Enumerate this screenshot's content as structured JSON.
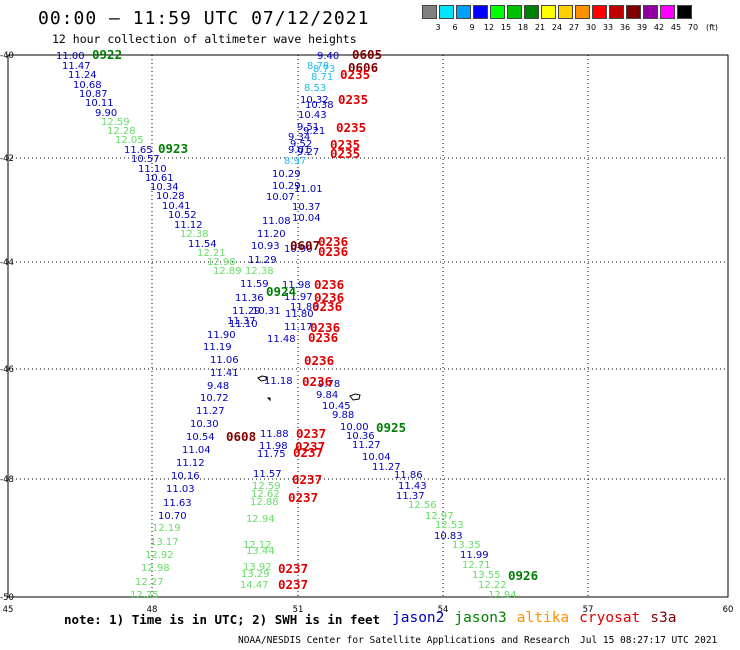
{
  "header": {
    "title": "00:00 – 11:59 UTC 07/12/2021",
    "subtitle": "12 hour collection of altimeter wave heights"
  },
  "legend": {
    "unit": "(ft)",
    "bins": [
      {
        "label": "3",
        "color": "#808080"
      },
      {
        "label": "6",
        "color": "#00e5ff"
      },
      {
        "label": "9",
        "color": "#00a0ff"
      },
      {
        "label": "12",
        "color": "#0000ff"
      },
      {
        "label": "15",
        "color": "#00ff00"
      },
      {
        "label": "18",
        "color": "#00c000"
      },
      {
        "label": "21",
        "color": "#008000"
      },
      {
        "label": "24",
        "color": "#ffff00"
      },
      {
        "label": "27",
        "color": "#ffd000"
      },
      {
        "label": "30",
        "color": "#ff9000"
      },
      {
        "label": "33",
        "color": "#ff0000"
      },
      {
        "label": "36",
        "color": "#c00000"
      },
      {
        "label": "39",
        "color": "#800000"
      },
      {
        "label": "42",
        "color": "#9000a0"
      },
      {
        "label": "45",
        "color": "#ff00ff"
      },
      {
        "label": "70",
        "color": "#000000"
      }
    ]
  },
  "axes": {
    "lat_labels": [
      "-40",
      "-42",
      "-44",
      "-46",
      "-48",
      "-50"
    ],
    "lon_labels": [
      "45",
      "48",
      "51",
      "54",
      "57",
      "60"
    ]
  },
  "satellite_colors": {
    "jason2": "#0000c0",
    "jason3": "#008000",
    "altika": "#ff9000",
    "cryosat": "#e00000",
    "s3a": "#800000",
    "light_green": "#66dd66",
    "cyan": "#22bbee"
  },
  "observations": [
    [
      "11.00",
      "#0000c0"
    ],
    [
      "11.47",
      "#0000c0"
    ],
    [
      "11.24",
      "#0000c0"
    ],
    [
      "10.68",
      "#0000c0"
    ],
    [
      "10.87",
      "#0000c0"
    ],
    [
      "10.11",
      "#0000c0"
    ],
    [
      "9.90",
      "#0000c0"
    ],
    [
      "12.59",
      "#66dd66"
    ],
    [
      "12.28",
      "#66dd66"
    ],
    [
      "12.05",
      "#66dd66"
    ],
    [
      "11.65",
      "#0000c0"
    ],
    [
      "10.57",
      "#0000c0"
    ],
    [
      "11.10",
      "#0000c0"
    ],
    [
      "10.61",
      "#0000c0"
    ],
    [
      "10.34",
      "#0000c0"
    ],
    [
      "10.28",
      "#0000c0"
    ],
    [
      "10.41",
      "#0000c0"
    ],
    [
      "10.52",
      "#0000c0"
    ],
    [
      "11.12",
      "#0000c0"
    ],
    [
      "12.38",
      "#66dd66"
    ],
    [
      "11.54",
      "#0000c0"
    ],
    [
      "12.21",
      "#66dd66"
    ],
    [
      "12.98",
      "#66dd66"
    ],
    [
      "12.89",
      "#66dd66"
    ],
    [
      "12.38",
      "#66dd66"
    ],
    [
      "11.59",
      "#0000c0"
    ],
    [
      "11.36",
      "#0000c0"
    ],
    [
      "11.29",
      "#0000c0"
    ],
    [
      "11.10",
      "#0000c0"
    ],
    [
      "10.31",
      "#0000c0"
    ],
    [
      "11.37",
      "#0000c0"
    ],
    [
      "11.90",
      "#0000c0"
    ],
    [
      "11.19",
      "#0000c0"
    ],
    [
      "11.06",
      "#0000c0"
    ],
    [
      "11.41",
      "#0000c0"
    ],
    [
      "9.48",
      "#0000c0"
    ],
    [
      "10.72",
      "#0000c0"
    ],
    [
      "11.27",
      "#0000c0"
    ],
    [
      "10.30",
      "#0000c0"
    ],
    [
      "10.54",
      "#0000c0"
    ],
    [
      "11.04",
      "#0000c0"
    ],
    [
      "11.12",
      "#0000c0"
    ],
    [
      "10.16",
      "#0000c0"
    ],
    [
      "11.03",
      "#0000c0"
    ],
    [
      "11.63",
      "#0000c0"
    ],
    [
      "10.70",
      "#0000c0"
    ],
    [
      "12.19",
      "#66dd66"
    ],
    [
      "13.17",
      "#66dd66"
    ],
    [
      "12.92",
      "#66dd66"
    ],
    [
      "12.98",
      "#66dd66"
    ],
    [
      "12.27",
      "#66dd66"
    ],
    [
      "12.25",
      "#66dd66"
    ],
    [
      "9.40",
      "#0000c0"
    ],
    [
      "8.78",
      "#22bbee"
    ],
    [
      "8.73",
      "#22bbee"
    ],
    [
      "8.71",
      "#22bbee"
    ],
    [
      "8.53",
      "#22bbee"
    ],
    [
      "10.32",
      "#0000c0"
    ],
    [
      "10.38",
      "#0000c0"
    ],
    [
      "10.43",
      "#0000c0"
    ],
    [
      "9.51",
      "#0000c0"
    ],
    [
      "9.21",
      "#0000c0"
    ],
    [
      "9.34",
      "#0000c0"
    ],
    [
      "9.52",
      "#0000c0"
    ],
    [
      "9.01",
      "#0000c0"
    ],
    [
      "9.27",
      "#0000c0"
    ],
    [
      "8.97",
      "#22bbee"
    ],
    [
      "10.29",
      "#0000c0"
    ],
    [
      "10.29",
      "#0000c0"
    ],
    [
      "11.01",
      "#0000c0"
    ],
    [
      "10.07",
      "#0000c0"
    ],
    [
      "10.37",
      "#0000c0"
    ],
    [
      "10.04",
      "#0000c0"
    ],
    [
      "11.08",
      "#0000c0"
    ],
    [
      "11.20",
      "#0000c0"
    ],
    [
      "10.93",
      "#0000c0"
    ],
    [
      "10.90",
      "#0000c0"
    ],
    [
      "11.29",
      "#0000c0"
    ],
    [
      "11.98",
      "#0000c0"
    ],
    [
      "11.97",
      "#0000c0"
    ],
    [
      "11.88",
      "#0000c0"
    ],
    [
      "11.80",
      "#0000c0"
    ],
    [
      "11.17",
      "#0000c0"
    ],
    [
      "11.48",
      "#0000c0"
    ],
    [
      "11.18",
      "#0000c0"
    ],
    [
      "11.88",
      "#0000c0"
    ],
    [
      "11.98",
      "#0000c0"
    ],
    [
      "11.75",
      "#0000c0"
    ],
    [
      "11.57",
      "#0000c0"
    ],
    [
      "12.59",
      "#66dd66"
    ],
    [
      "12.62",
      "#66dd66"
    ],
    [
      "12.88",
      "#66dd66"
    ],
    [
      "12.94",
      "#66dd66"
    ],
    [
      "12.12",
      "#66dd66"
    ],
    [
      "13.44",
      "#66dd66"
    ],
    [
      "13.92",
      "#66dd66"
    ],
    [
      "13.29",
      "#66dd66"
    ],
    [
      "14.47",
      "#66dd66"
    ],
    [
      "9.78",
      "#0000c0"
    ],
    [
      "9.84",
      "#0000c0"
    ],
    [
      "10.45",
      "#0000c0"
    ],
    [
      "9.88",
      "#0000c0"
    ],
    [
      "10.00",
      "#0000c0"
    ],
    [
      "10.36",
      "#0000c0"
    ],
    [
      "11.27",
      "#0000c0"
    ],
    [
      "10.04",
      "#0000c0"
    ],
    [
      "11.27",
      "#0000c0"
    ],
    [
      "11.86",
      "#0000c0"
    ],
    [
      "11.43",
      "#0000c0"
    ],
    [
      "11.37",
      "#0000c0"
    ],
    [
      "12.56",
      "#66dd66"
    ],
    [
      "12.97",
      "#66dd66"
    ],
    [
      "12.53",
      "#66dd66"
    ],
    [
      "10.83",
      "#0000c0"
    ],
    [
      "13.35",
      "#66dd66"
    ],
    [
      "11.99",
      "#0000c0"
    ],
    [
      "12.71",
      "#66dd66"
    ],
    [
      "13.55",
      "#66dd66"
    ],
    [
      "12.22",
      "#66dd66"
    ],
    [
      "12.94",
      "#66dd66"
    ]
  ],
  "time_marks": [
    [
      "0922",
      "#008000"
    ],
    [
      "0923",
      "#008000"
    ],
    [
      "0605",
      "#800000"
    ],
    [
      "0606",
      "#800000"
    ],
    [
      "0235",
      "#e00000"
    ],
    [
      "0235",
      "#e00000"
    ],
    [
      "0235",
      "#e00000"
    ],
    [
      "0235",
      "#e00000"
    ],
    [
      "0235",
      "#e00000"
    ],
    [
      "0607",
      "#800000"
    ],
    [
      "0236",
      "#e00000"
    ],
    [
      "0236",
      "#e00000"
    ],
    [
      "0924",
      "#008000"
    ],
    [
      "0236",
      "#e00000"
    ],
    [
      "0236",
      "#e00000"
    ],
    [
      "0236",
      "#e00000"
    ],
    [
      "0236",
      "#e00000"
    ],
    [
      "0236",
      "#e00000"
    ],
    [
      "0236",
      "#e00000"
    ],
    [
      "0236",
      "#e00000"
    ],
    [
      "0608",
      "#800000"
    ],
    [
      "0237",
      "#e00000"
    ],
    [
      "0237",
      "#e00000"
    ],
    [
      "0237",
      "#e00000"
    ],
    [
      "0237",
      "#e00000"
    ],
    [
      "0237",
      "#e00000"
    ],
    [
      "0237",
      "#e00000"
    ],
    [
      "0237",
      "#e00000"
    ],
    [
      "0925",
      "#008000"
    ],
    [
      "0926",
      "#008000"
    ]
  ],
  "footer": {
    "note": "note: 1) Time is in UTC; 2) SWH is in feet",
    "satellites": [
      "jason2",
      "jason3",
      "altika",
      "cryosat",
      "s3a"
    ],
    "credit": "NOAA/NESDIS Center for Satellite Applications and Research",
    "timestamp": "Jul 15 08:27:17 UTC 2021"
  }
}
